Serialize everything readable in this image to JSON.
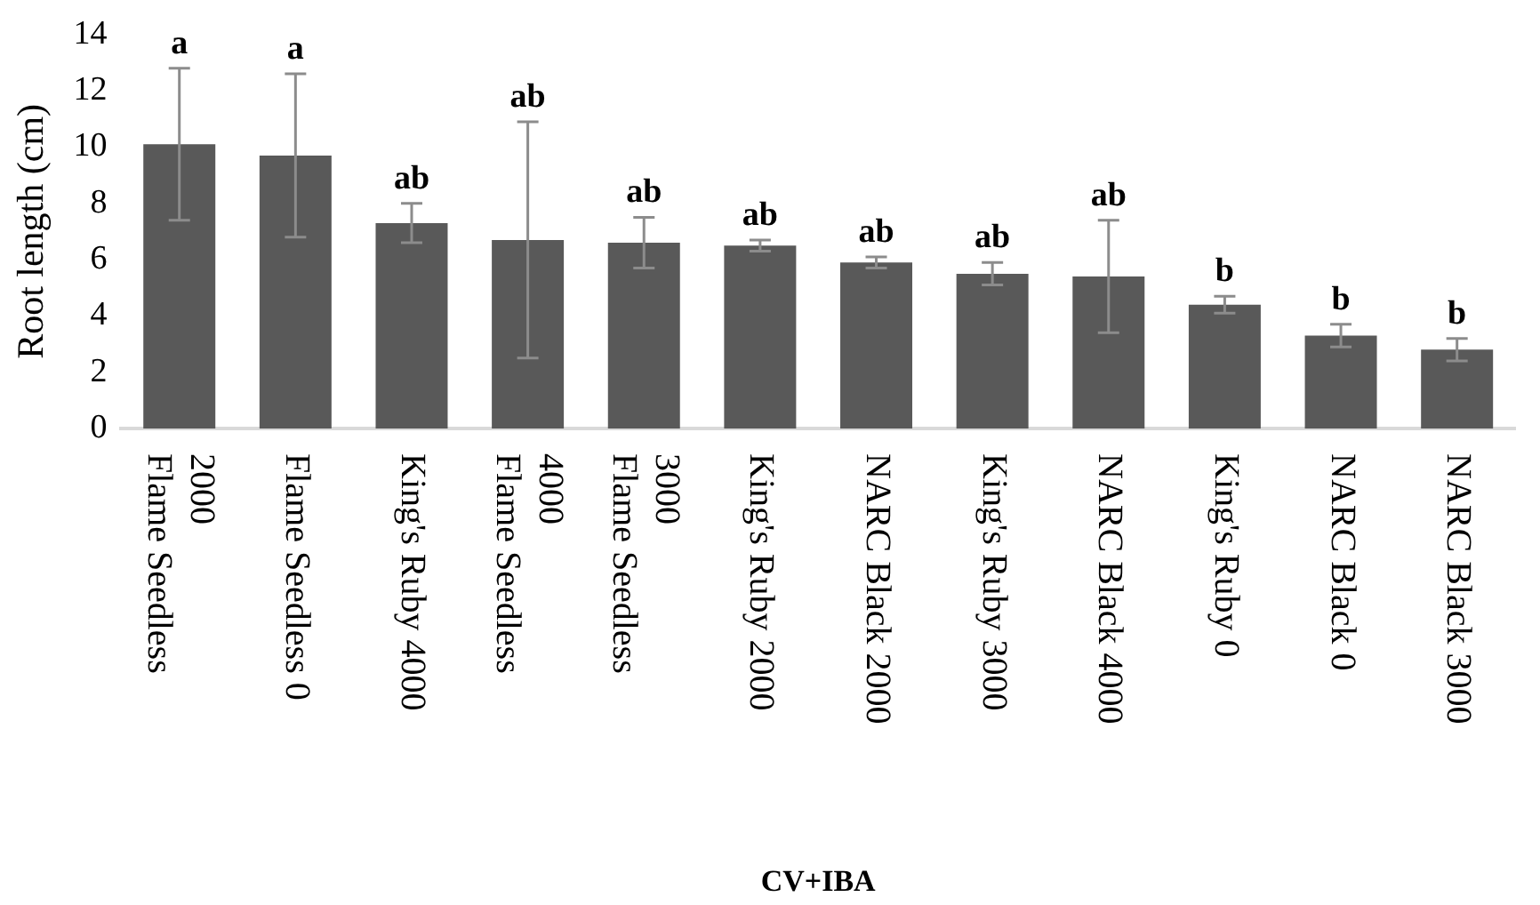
{
  "chart_data": {
    "type": "bar",
    "xlabel": "CV+IBA",
    "ylabel": "Root length (cm)",
    "categories": [
      "Flame Seedless 2000",
      "Flame Seedless 0",
      "King's Ruby 4000",
      "Flame Seedless 4000",
      "Flame Seedless 3000",
      "King's Ruby 2000",
      "NARC Black 2000",
      "King's Ruby 3000",
      "NARC Black 4000",
      "King's Ruby 0",
      "NARC Black 0",
      "NARC Black 3000"
    ],
    "values": [
      10.1,
      9.7,
      7.3,
      6.7,
      6.6,
      6.5,
      5.9,
      5.5,
      5.4,
      4.4,
      3.3,
      2.8
    ],
    "errors": [
      2.7,
      2.9,
      0.7,
      4.2,
      0.9,
      0.2,
      0.2,
      0.4,
      2.0,
      0.3,
      0.4,
      0.4
    ],
    "color": "#595959",
    "ylim": [
      0,
      14
    ],
    "yticks": [
      0,
      2,
      4,
      6,
      8,
      10,
      12,
      14
    ],
    "grid": false,
    "legend": false,
    "annotations": [
      {
        "text": "a",
        "x": "Flame Seedless 2000",
        "y": 12.8
      },
      {
        "text": "a",
        "x": "Flame Seedless 0",
        "y": 12.6
      },
      {
        "text": "ab",
        "x": "King's Ruby 4000",
        "y": 8.0
      },
      {
        "text": "ab",
        "x": "Flame Seedless 4000",
        "y": 10.9
      },
      {
        "text": "ab",
        "x": "Flame Seedless 3000",
        "y": 7.5
      },
      {
        "text": "ab",
        "x": "King's Ruby 2000",
        "y": 6.7
      },
      {
        "text": "ab",
        "x": "NARC Black 2000",
        "y": 6.1
      },
      {
        "text": "ab",
        "x": "King's Ruby 3000",
        "y": 5.9
      },
      {
        "text": "ab",
        "x": "NARC Black 4000",
        "y": 7.4
      },
      {
        "text": "b",
        "x": "King's Ruby 0",
        "y": 4.7
      },
      {
        "text": "b",
        "x": "NARC Black 0",
        "y": 3.7
      },
      {
        "text": "b",
        "x": "NARC Black 3000",
        "y": 3.2
      }
    ]
  }
}
